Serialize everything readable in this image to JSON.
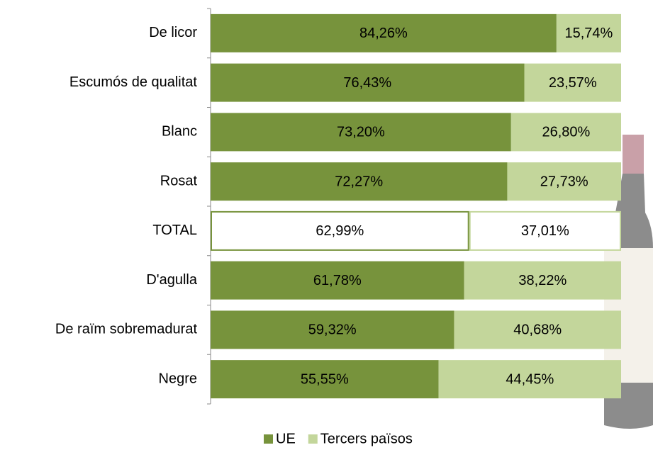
{
  "chart_data": {
    "type": "stacked-bar-horizontal",
    "categories": [
      "De licor",
      "Escumós de qualitat",
      "Blanc",
      "Rosat",
      "TOTAL",
      "D'agulla",
      "De raïm sobremadurat",
      "Negre"
    ],
    "series": [
      {
        "name": "UE",
        "color": "#77933c",
        "colors": [
          "#77933c",
          "#77933c",
          "#77933c",
          "#77933c",
          "#ffffff",
          "#77933c",
          "#77933c",
          "#77933c"
        ],
        "values": [
          84.26,
          76.43,
          73.2,
          72.27,
          62.99,
          61.78,
          59.32,
          55.55
        ],
        "value_labels": [
          "84,26%",
          "76,43%",
          "73,20%",
          "72,27%",
          "62,99%",
          "61,78%",
          "59,32%",
          "55,55%"
        ]
      },
      {
        "name": "Tercers països",
        "color": "#c3d69b",
        "colors": [
          "#c3d69b",
          "#c3d69b",
          "#c3d69b",
          "#c3d69b",
          "#ffffff",
          "#c3d69b",
          "#c3d69b",
          "#c3d69b"
        ],
        "values": [
          15.74,
          23.57,
          26.8,
          27.73,
          37.01,
          38.22,
          40.68,
          44.45
        ],
        "value_labels": [
          "15,74%",
          "23,57%",
          "26,80%",
          "27,73%",
          "37,01%",
          "38,22%",
          "40,68%",
          "44,45%"
        ]
      }
    ],
    "xlim": [
      0,
      100
    ],
    "legend": "bottom"
  }
}
